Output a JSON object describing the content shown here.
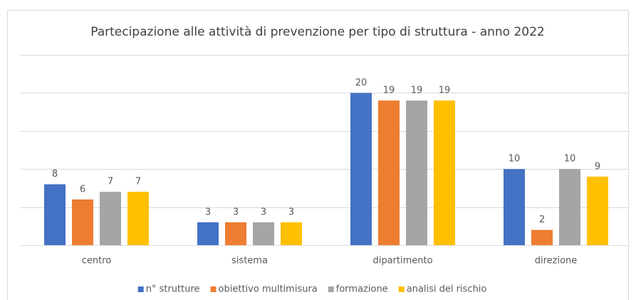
{
  "chart_data": {
    "type": "bar",
    "title": "Partecipazione alle attività di prevenzione per tipo di struttura - anno 2022",
    "categories": [
      "centro",
      "sistema",
      "dipartimento",
      "direzione"
    ],
    "series": [
      {
        "name": "n° strutture",
        "color": "#4472c4",
        "values": [
          8,
          3,
          20,
          10
        ]
      },
      {
        "name": "obiettivo multimisura",
        "color": "#ed7d31",
        "values": [
          6,
          3,
          19,
          2
        ]
      },
      {
        "name": "formazione",
        "color": "#a5a5a5",
        "values": [
          7,
          3,
          19,
          10
        ]
      },
      {
        "name": "analisi del rischio",
        "color": "#ffc000",
        "values": [
          7,
          3,
          19,
          9
        ]
      }
    ],
    "ylim": [
      0,
      25
    ],
    "yticks": [
      0,
      5,
      10,
      15,
      20,
      25
    ],
    "grid": true,
    "legend": "bottom"
  }
}
